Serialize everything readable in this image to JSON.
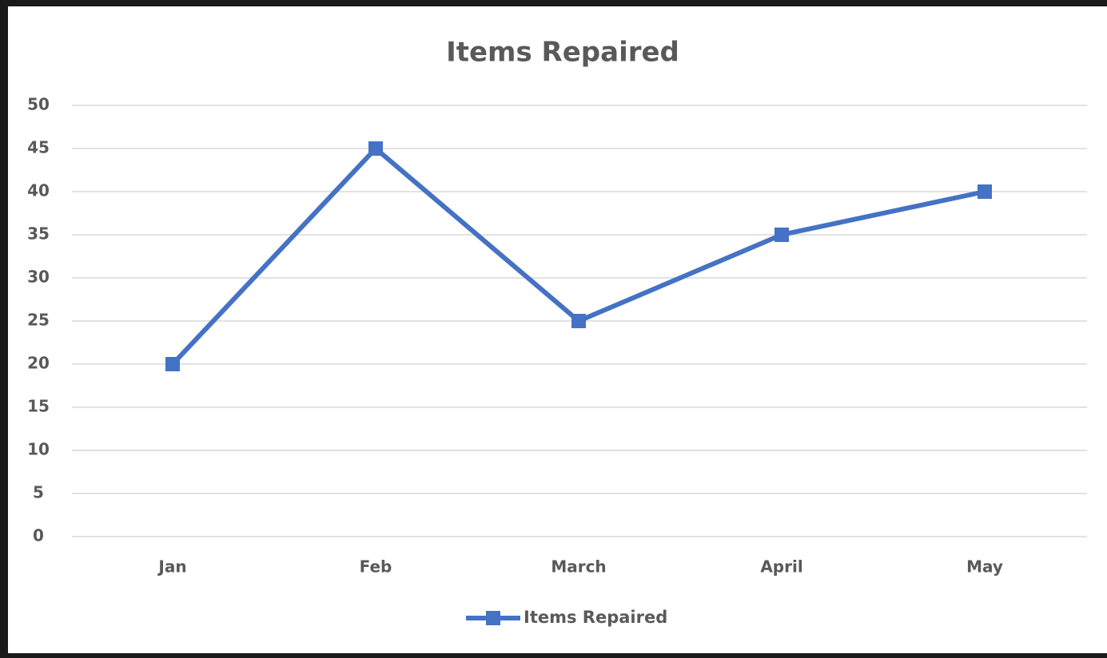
{
  "chart_data": {
    "type": "line",
    "title": "Items Repaired",
    "categories": [
      "Jan",
      "Feb",
      "March",
      "April",
      "May"
    ],
    "series": [
      {
        "name": "Items Repaired",
        "color": "#4472c4",
        "values": [
          20,
          45,
          25,
          35,
          40
        ]
      }
    ],
    "ylim": [
      0,
      50
    ],
    "yticks": [
      0,
      5,
      10,
      15,
      20,
      25,
      30,
      35,
      40,
      45,
      50
    ],
    "grid": true,
    "legend": "bottom"
  }
}
